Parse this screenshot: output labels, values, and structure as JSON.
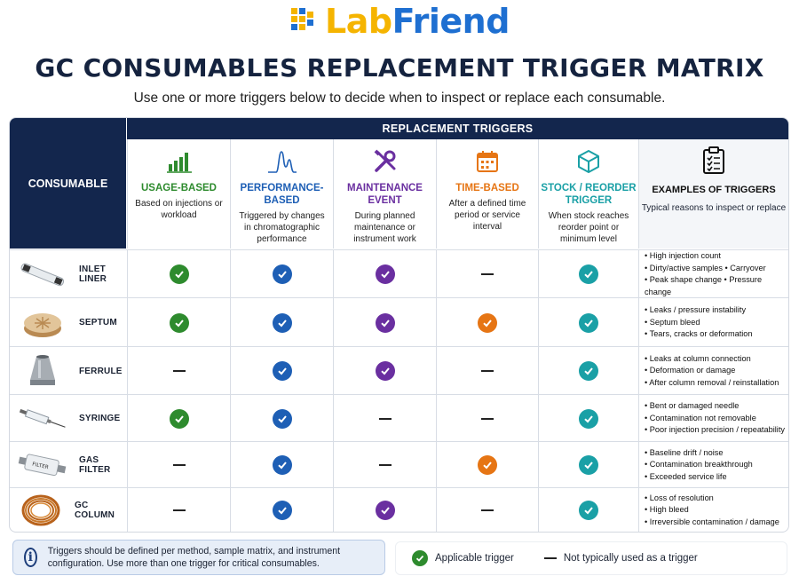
{
  "brand": {
    "name_part1": "Lab",
    "name_part2": "Friend"
  },
  "title": "GC CONSUMABLES REPLACEMENT TRIGGER MATRIX",
  "subtitle": "Use one or more triggers below to decide when to inspect or replace each consumable.",
  "table": {
    "consumable_header": "CONSUMABLE",
    "triggers_header": "REPLACEMENT TRIGGERS",
    "columns": [
      {
        "name": "USAGE-BASED",
        "desc": "Based on injections or workload",
        "color": "#2e8b2e",
        "icon": "bar-chart-icon"
      },
      {
        "name": "PERFORMANCE-BASED",
        "desc": "Triggered by changes in chromatographic performance",
        "color": "#1e5fb5",
        "icon": "chromatogram-peak-icon"
      },
      {
        "name": "MAINTENANCE EVENT",
        "desc": "During planned maintenance or instrument work",
        "color": "#6a2fa0",
        "icon": "wrench-screwdriver-icon"
      },
      {
        "name": "TIME-BASED",
        "desc": "After a defined time period or service interval",
        "color": "#e67514",
        "icon": "calendar-icon"
      },
      {
        "name": "STOCK / REORDER TRIGGER",
        "desc": "When stock reaches reorder point or minimum level",
        "color": "#1aa0a6",
        "icon": "box-icon"
      }
    ],
    "examples_header": {
      "name": "EXAMPLES OF TRIGGERS",
      "desc": "Typical reasons to inspect or replace",
      "icon": "clipboard-icon"
    },
    "rows": [
      {
        "name": "INLET LINER",
        "icon": "inlet-liner-icon",
        "marks": [
          true,
          true,
          true,
          false,
          true
        ],
        "examples": [
          "High injection count",
          "Dirty/active samples • Carryover",
          "Peak shape change • Pressure change"
        ]
      },
      {
        "name": "SEPTUM",
        "icon": "septum-icon",
        "marks": [
          true,
          true,
          true,
          true,
          true
        ],
        "examples": [
          "Leaks / pressure instability",
          "Septum bleed",
          "Tears, cracks or deformation"
        ]
      },
      {
        "name": "FERRULE",
        "icon": "ferrule-icon",
        "marks": [
          false,
          true,
          true,
          false,
          true
        ],
        "examples": [
          "Leaks at column connection",
          "Deformation or damage",
          "After column removal / reinstallation"
        ]
      },
      {
        "name": "SYRINGE",
        "icon": "syringe-icon",
        "marks": [
          true,
          true,
          false,
          false,
          true
        ],
        "examples": [
          "Bent or damaged needle",
          "Contamination not removable",
          "Poor injection precision / repeatability"
        ]
      },
      {
        "name": "GAS FILTER",
        "icon": "gas-filter-icon",
        "marks": [
          false,
          true,
          false,
          true,
          true
        ],
        "examples": [
          "Baseline drift / noise",
          "Contamination breakthrough",
          "Exceeded service life"
        ]
      },
      {
        "name": "GC COLUMN",
        "icon": "gc-column-icon",
        "marks": [
          false,
          true,
          true,
          false,
          true
        ],
        "examples": [
          "Loss of resolution",
          "High bleed",
          "Irreversible contamination / damage"
        ]
      }
    ]
  },
  "note": {
    "icon": "info-icon",
    "text": "Triggers should be defined per method, sample matrix, and instrument configuration. Use more than one trigger for critical consumables."
  },
  "legend": {
    "applicable": "Applicable trigger",
    "not_typical": "Not typically used as a trigger"
  }
}
